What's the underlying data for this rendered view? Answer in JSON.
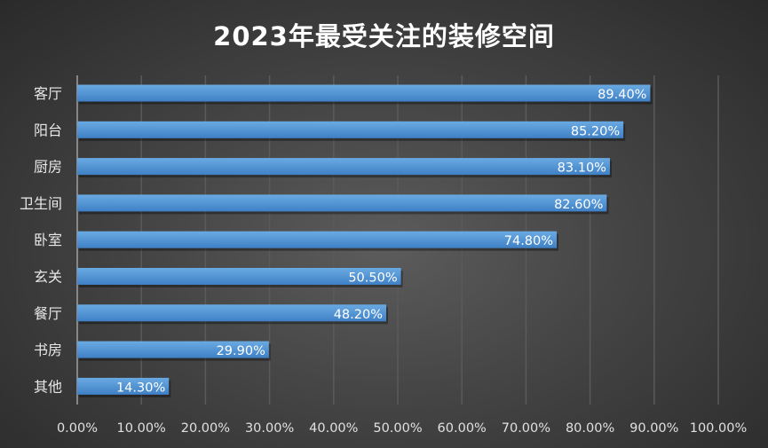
{
  "chart_data": {
    "type": "bar",
    "orientation": "horizontal",
    "title": "2023年最受关注的装修空间",
    "categories": [
      "客厅",
      "阳台",
      "厨房",
      "卫生间",
      "卧室",
      "玄关",
      "餐厅",
      "书房",
      "其他"
    ],
    "values": [
      89.4,
      85.2,
      83.1,
      82.6,
      74.8,
      50.5,
      48.2,
      29.9,
      14.3
    ],
    "data_labels": [
      "89.40%",
      "85.20%",
      "83.10%",
      "82.60%",
      "74.80%",
      "50.50%",
      "48.20%",
      "29.90%",
      "14.30%"
    ],
    "xlim": [
      0,
      100
    ],
    "x_ticks": [
      "0.00%",
      "10.00%",
      "20.00%",
      "30.00%",
      "40.00%",
      "50.00%",
      "60.00%",
      "70.00%",
      "80.00%",
      "90.00%",
      "100.00%"
    ],
    "grid": true,
    "legend": "none",
    "colors": {
      "bar": "#5b9bd5",
      "bar_dark": "#3f7fc4",
      "background": "#444444",
      "text": "#ffffff",
      "grid": "#5a5a5a"
    }
  }
}
